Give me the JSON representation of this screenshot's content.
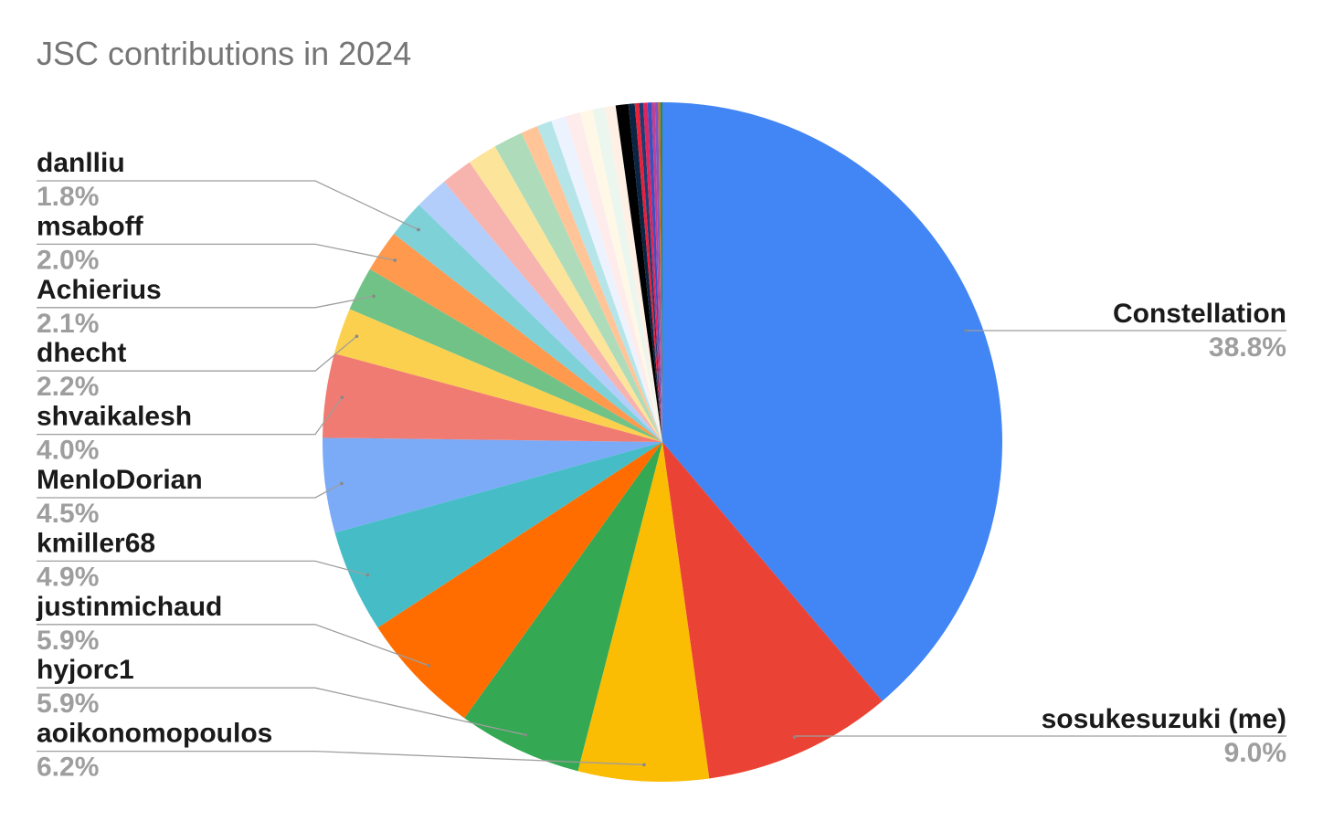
{
  "chart_data": {
    "type": "pie",
    "title": "JSC contributions in 2024",
    "start": "top",
    "direction": "clockwise",
    "legend": "none",
    "slices": [
      {
        "name": "Constellation",
        "label": "38.8%",
        "value": 38.8,
        "color": "#4285f4",
        "side": "right"
      },
      {
        "name": "sosukesuzuki (me)",
        "label": "9.0%",
        "value": 9.0,
        "color": "#ea4335",
        "side": "right"
      },
      {
        "name": "aoikonomopoulos",
        "label": "6.2%",
        "value": 6.2,
        "color": "#fbbc04",
        "side": "left"
      },
      {
        "name": "hyjorc1",
        "label": "5.9%",
        "value": 5.9,
        "color": "#34a853",
        "side": "left"
      },
      {
        "name": "justinmichaud",
        "label": "5.9%",
        "value": 5.9,
        "color": "#ff6d01",
        "side": "left"
      },
      {
        "name": "kmiller68",
        "label": "4.9%",
        "value": 4.9,
        "color": "#46bdc6",
        "side": "left"
      },
      {
        "name": "MenloDorian",
        "label": "4.5%",
        "value": 4.5,
        "color": "#7baaf7",
        "side": "left"
      },
      {
        "name": "shvaikalesh",
        "label": "4.0%",
        "value": 4.0,
        "color": "#f07b72",
        "side": "left"
      },
      {
        "name": "dhecht",
        "label": "2.2%",
        "value": 2.2,
        "color": "#fcd04f",
        "side": "left"
      },
      {
        "name": "Achierius",
        "label": "2.1%",
        "value": 2.1,
        "color": "#71c287",
        "side": "left"
      },
      {
        "name": "msaboff",
        "label": "2.0%",
        "value": 2.0,
        "color": "#ff994d",
        "side": "left"
      },
      {
        "name": "danlliu",
        "label": "1.8%",
        "value": 1.8,
        "color": "#7ed1d7",
        "side": "left"
      },
      {
        "value": 1.6,
        "color": "#b3cefb"
      },
      {
        "value": 1.5,
        "color": "#f7b4ae"
      },
      {
        "value": 1.4,
        "color": "#fde49b"
      },
      {
        "value": 1.4,
        "color": "#aedcba"
      },
      {
        "value": 0.8,
        "color": "#ffc599"
      },
      {
        "value": 0.7,
        "color": "#b5e5e8"
      },
      {
        "value": 0.7,
        "color": "#ecf3fe"
      },
      {
        "value": 0.7,
        "color": "#fdeceb"
      },
      {
        "value": 0.6,
        "color": "#fff8e6"
      },
      {
        "value": 0.6,
        "color": "#ebf6ee"
      },
      {
        "value": 0.5,
        "color": "#fff0e6"
      },
      {
        "value": 0.6,
        "color": "#000000"
      },
      {
        "value": 0.3,
        "color": "#0b2545"
      },
      {
        "value": 0.2,
        "color": "#e8203a"
      },
      {
        "value": 0.2,
        "color": "#1f3b73"
      },
      {
        "value": 0.2,
        "color": "#e0245e"
      },
      {
        "value": 0.2,
        "color": "#3c4fbf"
      },
      {
        "value": 0.15,
        "color": "#c2408f"
      },
      {
        "value": 0.15,
        "color": "#7a56c9"
      },
      {
        "value": 0.1,
        "color": "#d4691e"
      },
      {
        "value": 0.1,
        "color": "#1e8f4e"
      }
    ]
  }
}
